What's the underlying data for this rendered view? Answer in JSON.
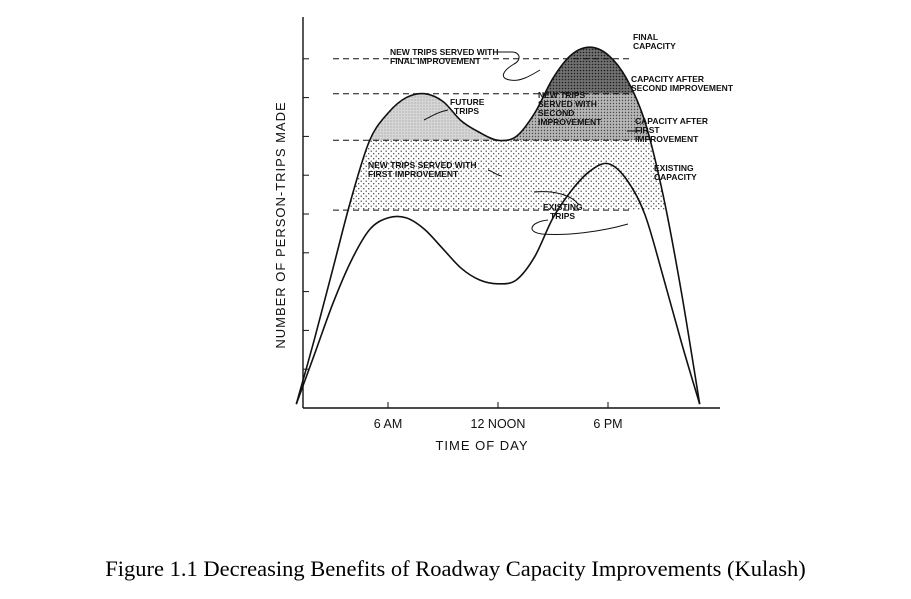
{
  "chart_data": {
    "type": "area",
    "xlabel": "TIME OF DAY",
    "ylabel": "NUMBER OF PERSON-TRIPS MADE",
    "xticks": [
      "6 AM",
      "12 NOON",
      "6 PM"
    ],
    "x_range": [
      0,
      24
    ],
    "y_range": [
      0,
      10
    ],
    "grid": false,
    "series": [
      {
        "name": "FUTURE TRIPS",
        "x": [
          1,
          2,
          3,
          4,
          5,
          6,
          7,
          8,
          9,
          10,
          11,
          12,
          13,
          14,
          15,
          16,
          17,
          18,
          19,
          20,
          21,
          22,
          23
        ],
        "values": [
          0.1,
          1.8,
          3.6,
          5.4,
          6.9,
          7.6,
          8.0,
          8.1,
          7.9,
          7.4,
          7.1,
          6.9,
          7.0,
          7.6,
          8.5,
          9.1,
          9.3,
          9.1,
          8.5,
          7.4,
          5.5,
          3.0,
          0.1
        ]
      },
      {
        "name": "EXISTING TRIPS",
        "x": [
          1,
          2,
          3,
          4,
          5,
          6,
          7,
          8,
          9,
          10,
          11,
          12,
          13,
          14,
          15,
          16,
          17,
          18,
          19,
          20,
          21,
          22,
          23
        ],
        "values": [
          0.1,
          1.4,
          2.7,
          3.8,
          4.6,
          4.9,
          4.9,
          4.6,
          4.1,
          3.6,
          3.3,
          3.2,
          3.3,
          3.9,
          4.9,
          5.6,
          6.1,
          6.3,
          5.9,
          5.0,
          3.4,
          1.7,
          0.1
        ]
      }
    ],
    "capacity_lines": [
      {
        "label": "EXISTING CAPACITY",
        "value": 5.1
      },
      {
        "label": "CAPACITY AFTER FIRST IMPROVEMENT",
        "value": 6.9
      },
      {
        "label": "CAPACITY AFTER SECOND IMPROVEMENT",
        "value": 8.1
      },
      {
        "label": "FINAL CAPACITY",
        "value": 9.0
      }
    ],
    "annotations": [
      "NEW TRIPS SERVED WITH FIRST IMPROVEMENT",
      "NEW TRIPS SERVED WITH SECOND IMPROVEMENT",
      "NEW TRIPS SERVED WITH FINAL IMPROVEMENT",
      "FUTURE TRIPS",
      "EXISTING TRIPS"
    ],
    "caption": "Figure 1.1 Decreasing Benefits of Roadway Capacity Improvements (Kulash)"
  }
}
